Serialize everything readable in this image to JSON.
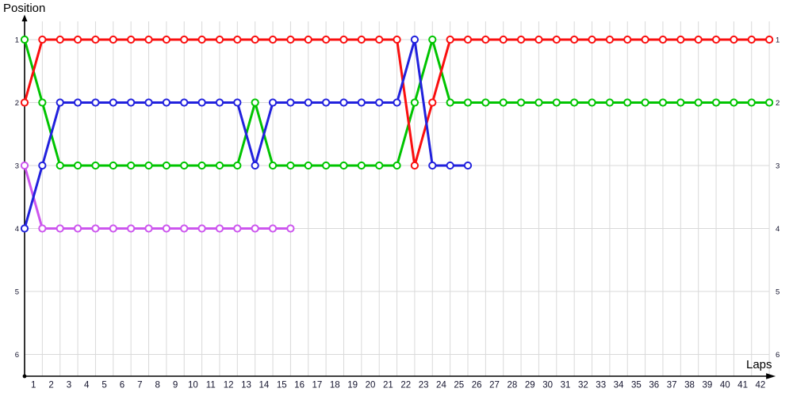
{
  "chart_data": {
    "type": "line",
    "title": "",
    "xlabel": "Laps",
    "ylabel": "Position",
    "x_ticks": [
      1,
      2,
      3,
      4,
      5,
      6,
      7,
      8,
      9,
      10,
      11,
      12,
      13,
      14,
      15,
      16,
      17,
      18,
      19,
      20,
      21,
      22,
      23,
      24,
      25,
      26,
      27,
      28,
      29,
      30,
      31,
      32,
      33,
      34,
      35,
      36,
      37,
      38,
      39,
      40,
      41,
      42
    ],
    "y_ticks_left": [
      1,
      2,
      3,
      4,
      5,
      6
    ],
    "y_ticks_right": [
      1,
      2,
      3,
      4,
      5,
      6
    ],
    "ylim": [
      1,
      6
    ],
    "y_inverted": true,
    "grid": true,
    "legend": "none",
    "marker": "open-circle",
    "colors": {
      "grid": "#d9d9d9",
      "axis": "#000000",
      "tick_text": "#14142e"
    },
    "series": [
      {
        "name": "magenta",
        "color": "#cc55ee",
        "values": [
          3,
          4,
          4,
          4,
          4,
          4,
          4,
          4,
          4,
          4,
          4,
          4,
          4,
          4,
          4,
          4
        ]
      },
      {
        "name": "green",
        "color": "#00c400",
        "values": [
          1,
          2,
          3,
          3,
          3,
          3,
          3,
          3,
          3,
          3,
          3,
          3,
          3,
          2,
          3,
          3,
          3,
          3,
          3,
          3,
          3,
          3,
          2,
          1,
          2,
          2,
          2,
          2,
          2,
          2,
          2,
          2,
          2,
          2,
          2,
          2,
          2,
          2,
          2,
          2,
          2,
          2,
          2
        ]
      },
      {
        "name": "red",
        "color": "#fa0f0f",
        "values": [
          2,
          1,
          1,
          1,
          1,
          1,
          1,
          1,
          1,
          1,
          1,
          1,
          1,
          1,
          1,
          1,
          1,
          1,
          1,
          1,
          1,
          1,
          3,
          2,
          1,
          1,
          1,
          1,
          1,
          1,
          1,
          1,
          1,
          1,
          1,
          1,
          1,
          1,
          1,
          1,
          1,
          1,
          1
        ]
      },
      {
        "name": "blue",
        "color": "#2121dd",
        "values": [
          4,
          3,
          2,
          2,
          2,
          2,
          2,
          2,
          2,
          2,
          2,
          2,
          2,
          3,
          2,
          2,
          2,
          2,
          2,
          2,
          2,
          2,
          1,
          3,
          3,
          3
        ]
      }
    ]
  }
}
